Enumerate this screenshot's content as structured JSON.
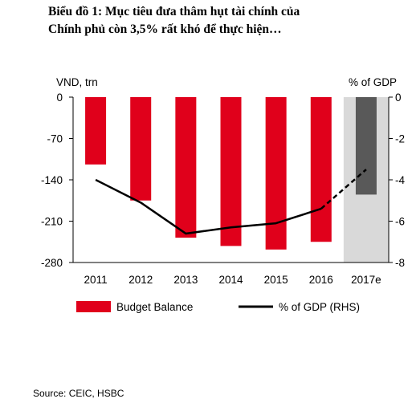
{
  "title": {
    "line1": "Biểu đồ 1: Mục tiêu đưa thâm hụt tài chính của",
    "line2": "Chính phủ còn 3,5% rất khó để thực hiện…"
  },
  "source": "Source: CEIC, HSBC",
  "chart_data": {
    "type": "bar",
    "left_axis_label": "VND, trn",
    "right_axis_label": "% of GDP",
    "categories": [
      "2011",
      "2012",
      "2013",
      "2014",
      "2015",
      "2016",
      "2017e"
    ],
    "left_ylim": [
      -280,
      0
    ],
    "left_ticks": [
      0,
      -70,
      -140,
      -210,
      -280
    ],
    "left_tick_labels": [
      "0",
      "-70",
      "-140",
      "-210",
      "-280"
    ],
    "right_ylim": [
      -8,
      0
    ],
    "right_ticks": [
      0,
      -2,
      -4,
      -6,
      -8
    ],
    "right_tick_labels": [
      "0",
      "-2",
      "-4",
      "-6",
      "-8"
    ],
    "series": [
      {
        "name": "Budget Balance",
        "axis": "left",
        "values": [
          -114,
          -175,
          -238,
          -252,
          -258,
          -245,
          -165
        ],
        "color": "#e0001b",
        "estimate_color": "#595959"
      },
      {
        "name": "% of GDP (RHS)",
        "axis": "right",
        "values": [
          -4.0,
          -5.1,
          -6.6,
          -6.3,
          -6.1,
          -5.4,
          -3.5
        ],
        "color": "#000000",
        "estimate_style": "dashed"
      }
    ],
    "forecast_region": {
      "from_category": "2017e",
      "color": "#d9d9d9"
    },
    "legend": {
      "position": "bottom"
    }
  }
}
